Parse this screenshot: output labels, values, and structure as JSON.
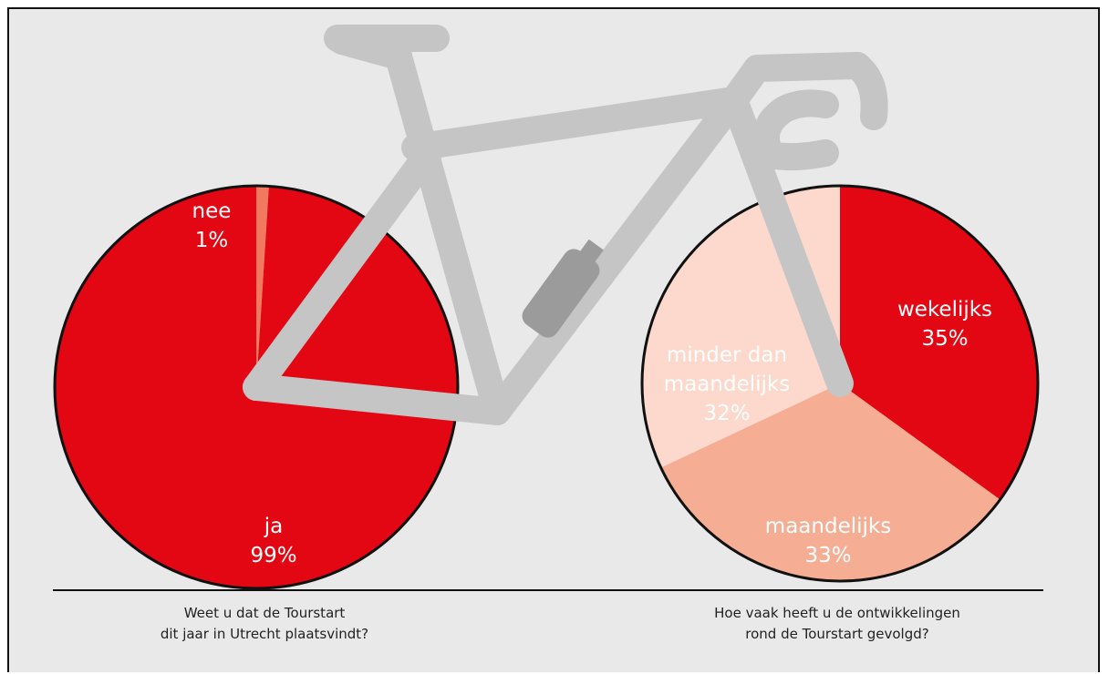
{
  "chart_data": [
    {
      "type": "pie",
      "caption": [
        "Weet u dat de Tourstart",
        "dit jaar in Utrecht plaatsvindt?"
      ],
      "categories": [
        "nee",
        "ja"
      ],
      "values": [
        1,
        99
      ],
      "value_labels": [
        "1%",
        "99%"
      ],
      "colors": [
        "#f07a60",
        "#e30613"
      ]
    },
    {
      "type": "pie",
      "caption": [
        "Hoe vaak heeft u de ontwikkelingen",
        "rond de Tourstart gevolgd?"
      ],
      "categories": [
        "wekelijks",
        "maandelijks",
        "minder dan maandelijks"
      ],
      "values": [
        35,
        33,
        32
      ],
      "value_labels": [
        "35%",
        "33%",
        "32%"
      ],
      "colors": [
        "#e30613",
        "#f5ad94",
        "#fcd9cc"
      ]
    }
  ]
}
